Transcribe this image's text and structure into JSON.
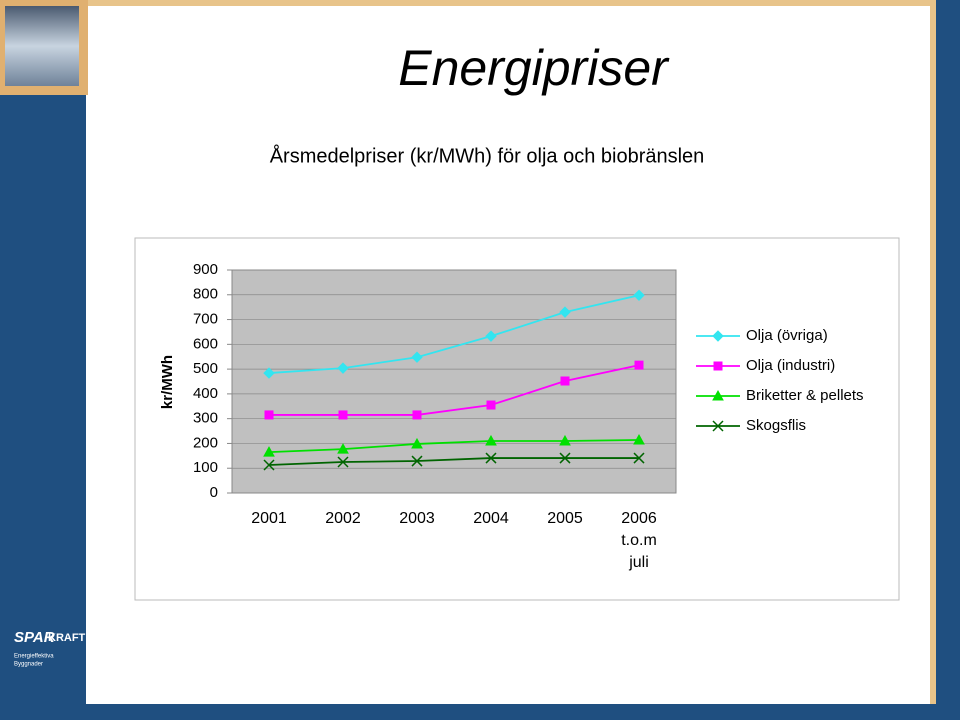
{
  "title": "Energipriser",
  "logo": {
    "brand_a": "SPAR",
    "brand_b": "KRAFT",
    "line1": "Energieffektiva",
    "line2": "Byggnader"
  },
  "chart_data": {
    "type": "line",
    "title": "Årsmedelpriser (kr/MWh) för olja och biobränslen",
    "y_label": "kr/MWh",
    "categories": [
      "2001",
      "2002",
      "2003",
      "2004",
      "2005",
      "2006 t.o.m juli"
    ],
    "ylim": [
      0,
      900
    ],
    "yticks": [
      0,
      100,
      200,
      300,
      400,
      500,
      600,
      700,
      800,
      900
    ],
    "grid": true,
    "legend": "right",
    "series": [
      {
        "name": "Olja (övriga)",
        "color": "#33e5f0",
        "marker": "diamond",
        "values": [
          484,
          504,
          548,
          633,
          730,
          798
        ]
      },
      {
        "name": "Olja (industri)",
        "color": "#ff00ff",
        "marker": "square",
        "values": [
          315,
          315,
          315,
          355,
          452,
          516
        ]
      },
      {
        "name": "Briketter & pellets",
        "color": "#00e000",
        "marker": "triangle",
        "values": [
          165,
          177,
          198,
          210,
          210,
          214
        ]
      },
      {
        "name": "Skogsflis",
        "color": "#006400",
        "marker": "x",
        "values": [
          113,
          125,
          129,
          141,
          141,
          141
        ]
      }
    ]
  }
}
